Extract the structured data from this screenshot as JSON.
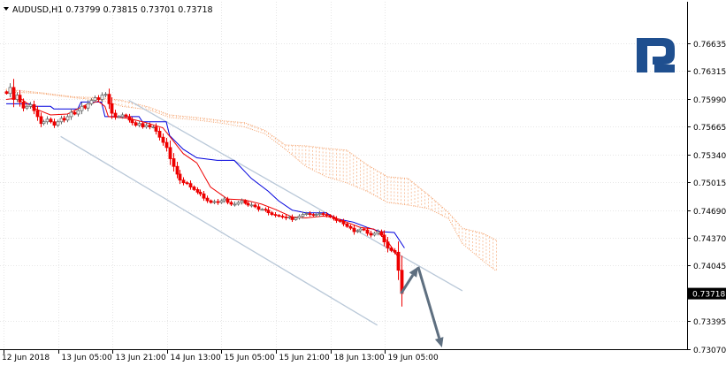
{
  "header": {
    "symbol": "AUDUSD,H1",
    "open": "0.73799",
    "high": "0.73815",
    "low": "0.73701",
    "close": "0.73718"
  },
  "colors": {
    "bull": "#6b6b6b",
    "bear": "#ee0000",
    "tenkan": "#ee0000",
    "kijun": "#0000dd",
    "cloud": "#f4a06a",
    "channel": "#b9c8d8",
    "arrow": "#5e6f80",
    "grid": "#e6e6e6",
    "price_marker": "#000000",
    "logo": "#1f4f8f"
  },
  "icons": {
    "logo": "roboforex-r-logo",
    "dropdown": "triangle-down-icon"
  },
  "chart_data": {
    "type": "candlestick",
    "title": "AUDUSD,H1",
    "y_axis": {
      "ticks": [
        "0.76635",
        "0.76315",
        "0.75990",
        "0.75665",
        "0.75340",
        "0.75015",
        "0.74690",
        "0.74370",
        "0.74045",
        "0.73395",
        "0.73070"
      ],
      "ylim": [
        0.7307,
        0.7683
      ]
    },
    "x_axis": {
      "ticks": [
        "12 Jun 2018",
        "13 Jun 05:00",
        "13 Jun 21:00",
        "14 Jun 13:00",
        "15 Jun 05:00",
        "15 Jun 21:00",
        "18 Jun 13:00",
        "19 Jun 05:00"
      ],
      "tick_bars": [
        0,
        16,
        32,
        48,
        64,
        80,
        96,
        112
      ],
      "n_bars": 117
    },
    "current_price": "0.73718",
    "close": [
      0.7605,
      0.7612,
      0.7598,
      0.7603,
      0.7595,
      0.7588,
      0.759,
      0.7592,
      0.7585,
      0.7578,
      0.757,
      0.7572,
      0.7575,
      0.7572,
      0.7568,
      0.7572,
      0.7576,
      0.7574,
      0.7578,
      0.7583,
      0.7581,
      0.7585,
      0.759,
      0.7588,
      0.7593,
      0.7597,
      0.76,
      0.7598,
      0.7603,
      0.7604,
      0.7593,
      0.7582,
      0.7578,
      0.7578,
      0.758,
      0.7578,
      0.7574,
      0.7571,
      0.7568,
      0.757,
      0.7566,
      0.7568,
      0.7566,
      0.7566,
      0.7561,
      0.7554,
      0.7548,
      0.7542,
      0.7529,
      0.752,
      0.7511,
      0.7504,
      0.7501,
      0.75,
      0.7496,
      0.7493,
      0.749,
      0.7488,
      0.7483,
      0.748,
      0.7478,
      0.7479,
      0.7478,
      0.748,
      0.7482,
      0.7478,
      0.7476,
      0.7476,
      0.7478,
      0.748,
      0.7477,
      0.7475,
      0.7475,
      0.7473,
      0.747,
      0.747,
      0.7469,
      0.7466,
      0.7464,
      0.7463,
      0.7462,
      0.7461,
      0.746,
      0.7461,
      0.7458,
      0.746,
      0.7462,
      0.7464,
      0.7465,
      0.7464,
      0.7463,
      0.7464,
      0.7465,
      0.7464,
      0.7463,
      0.7461,
      0.7459,
      0.7457,
      0.7456,
      0.7453,
      0.745,
      0.7448,
      0.7444,
      0.7445,
      0.7447,
      0.7446,
      0.7442,
      0.744,
      0.7442,
      0.7444,
      0.744,
      0.7432,
      0.7425,
      0.7422,
      0.742,
      0.7399,
      0.7372
    ],
    "kijun": [
      {
        "x": 0,
        "y": 0.7593
      },
      {
        "x": 7,
        "y": 0.7593
      },
      {
        "x": 8,
        "y": 0.759
      },
      {
        "x": 13,
        "y": 0.759
      },
      {
        "x": 14,
        "y": 0.7587
      },
      {
        "x": 21,
        "y": 0.7587
      },
      {
        "x": 22,
        "y": 0.7595
      },
      {
        "x": 28,
        "y": 0.7595
      },
      {
        "x": 29,
        "y": 0.7578
      },
      {
        "x": 39,
        "y": 0.7578
      },
      {
        "x": 40,
        "y": 0.7572
      },
      {
        "x": 47,
        "y": 0.7572
      },
      {
        "x": 48,
        "y": 0.7556
      },
      {
        "x": 52,
        "y": 0.754
      },
      {
        "x": 56,
        "y": 0.753
      },
      {
        "x": 62,
        "y": 0.7527
      },
      {
        "x": 67,
        "y": 0.7527
      },
      {
        "x": 72,
        "y": 0.7506
      },
      {
        "x": 77,
        "y": 0.7491
      },
      {
        "x": 80,
        "y": 0.748
      },
      {
        "x": 84,
        "y": 0.7469
      },
      {
        "x": 88,
        "y": 0.7466
      },
      {
        "x": 94,
        "y": 0.7466
      },
      {
        "x": 97,
        "y": 0.7459
      },
      {
        "x": 102,
        "y": 0.7455
      },
      {
        "x": 106,
        "y": 0.7449
      },
      {
        "x": 110,
        "y": 0.7444
      },
      {
        "x": 114,
        "y": 0.7443
      },
      {
        "x": 117,
        "y": 0.7425
      }
    ],
    "tenkan": [
      {
        "x": 0,
        "y": 0.7598
      },
      {
        "x": 4,
        "y": 0.76
      },
      {
        "x": 8,
        "y": 0.7588
      },
      {
        "x": 13,
        "y": 0.758
      },
      {
        "x": 18,
        "y": 0.7581
      },
      {
        "x": 23,
        "y": 0.7591
      },
      {
        "x": 27,
        "y": 0.7596
      },
      {
        "x": 29,
        "y": 0.759
      },
      {
        "x": 30,
        "y": 0.7578
      },
      {
        "x": 36,
        "y": 0.7576
      },
      {
        "x": 41,
        "y": 0.7571
      },
      {
        "x": 46,
        "y": 0.7565
      },
      {
        "x": 49,
        "y": 0.755
      },
      {
        "x": 52,
        "y": 0.7535
      },
      {
        "x": 56,
        "y": 0.7524
      },
      {
        "x": 60,
        "y": 0.7496
      },
      {
        "x": 65,
        "y": 0.7482
      },
      {
        "x": 70,
        "y": 0.7481
      },
      {
        "x": 75,
        "y": 0.7476
      },
      {
        "x": 79,
        "y": 0.747
      },
      {
        "x": 84,
        "y": 0.7461
      },
      {
        "x": 88,
        "y": 0.746
      },
      {
        "x": 93,
        "y": 0.7462
      },
      {
        "x": 96,
        "y": 0.7461
      },
      {
        "x": 100,
        "y": 0.7455
      },
      {
        "x": 104,
        "y": 0.7449
      },
      {
        "x": 108,
        "y": 0.7447
      },
      {
        "x": 112,
        "y": 0.7433
      },
      {
        "x": 115,
        "y": 0.7415
      }
    ],
    "cloud_upper": [
      {
        "x": 0,
        "y": 0.761
      },
      {
        "x": 10,
        "y": 0.7606
      },
      {
        "x": 20,
        "y": 0.7601
      },
      {
        "x": 28,
        "y": 0.76
      },
      {
        "x": 34,
        "y": 0.7597
      },
      {
        "x": 42,
        "y": 0.7589
      },
      {
        "x": 48,
        "y": 0.758
      },
      {
        "x": 56,
        "y": 0.7577
      },
      {
        "x": 64,
        "y": 0.7573
      },
      {
        "x": 70,
        "y": 0.7571
      },
      {
        "x": 76,
        "y": 0.7562
      },
      {
        "x": 82,
        "y": 0.7545
      },
      {
        "x": 88,
        "y": 0.7544
      },
      {
        "x": 94,
        "y": 0.7541
      },
      {
        "x": 100,
        "y": 0.7539
      },
      {
        "x": 106,
        "y": 0.7522
      },
      {
        "x": 112,
        "y": 0.7508
      },
      {
        "x": 118,
        "y": 0.7506
      },
      {
        "x": 124,
        "y": 0.7487
      },
      {
        "x": 130,
        "y": 0.7466
      },
      {
        "x": 134,
        "y": 0.7448
      },
      {
        "x": 140,
        "y": 0.7442
      },
      {
        "x": 144,
        "y": 0.7434
      }
    ],
    "cloud_lower": [
      {
        "x": 0,
        "y": 0.7607
      },
      {
        "x": 10,
        "y": 0.7605
      },
      {
        "x": 20,
        "y": 0.76
      },
      {
        "x": 28,
        "y": 0.7597
      },
      {
        "x": 34,
        "y": 0.759
      },
      {
        "x": 42,
        "y": 0.7586
      },
      {
        "x": 48,
        "y": 0.7577
      },
      {
        "x": 56,
        "y": 0.7574
      },
      {
        "x": 64,
        "y": 0.757
      },
      {
        "x": 70,
        "y": 0.7566
      },
      {
        "x": 76,
        "y": 0.7558
      },
      {
        "x": 82,
        "y": 0.754
      },
      {
        "x": 88,
        "y": 0.752
      },
      {
        "x": 94,
        "y": 0.7508
      },
      {
        "x": 100,
        "y": 0.7501
      },
      {
        "x": 106,
        "y": 0.7491
      },
      {
        "x": 112,
        "y": 0.7478
      },
      {
        "x": 118,
        "y": 0.7475
      },
      {
        "x": 124,
        "y": 0.7471
      },
      {
        "x": 130,
        "y": 0.7459
      },
      {
        "x": 134,
        "y": 0.743
      },
      {
        "x": 140,
        "y": 0.741
      },
      {
        "x": 144,
        "y": 0.7398
      }
    ],
    "channel_upper": [
      {
        "x": 36,
        "y": 0.7597
      },
      {
        "x": 134,
        "y": 0.7375
      }
    ],
    "channel_lower": [
      {
        "x": 16,
        "y": 0.7555
      },
      {
        "x": 109,
        "y": 0.7335
      }
    ],
    "forecast_arrows": [
      {
        "from": {
          "x": 116,
          "y": 0.7372
        },
        "to": {
          "x": 121,
          "y": 0.7403
        }
      },
      {
        "from": {
          "x": 121,
          "y": 0.7403
        },
        "to": {
          "x": 128,
          "y": 0.7309
        }
      }
    ]
  }
}
